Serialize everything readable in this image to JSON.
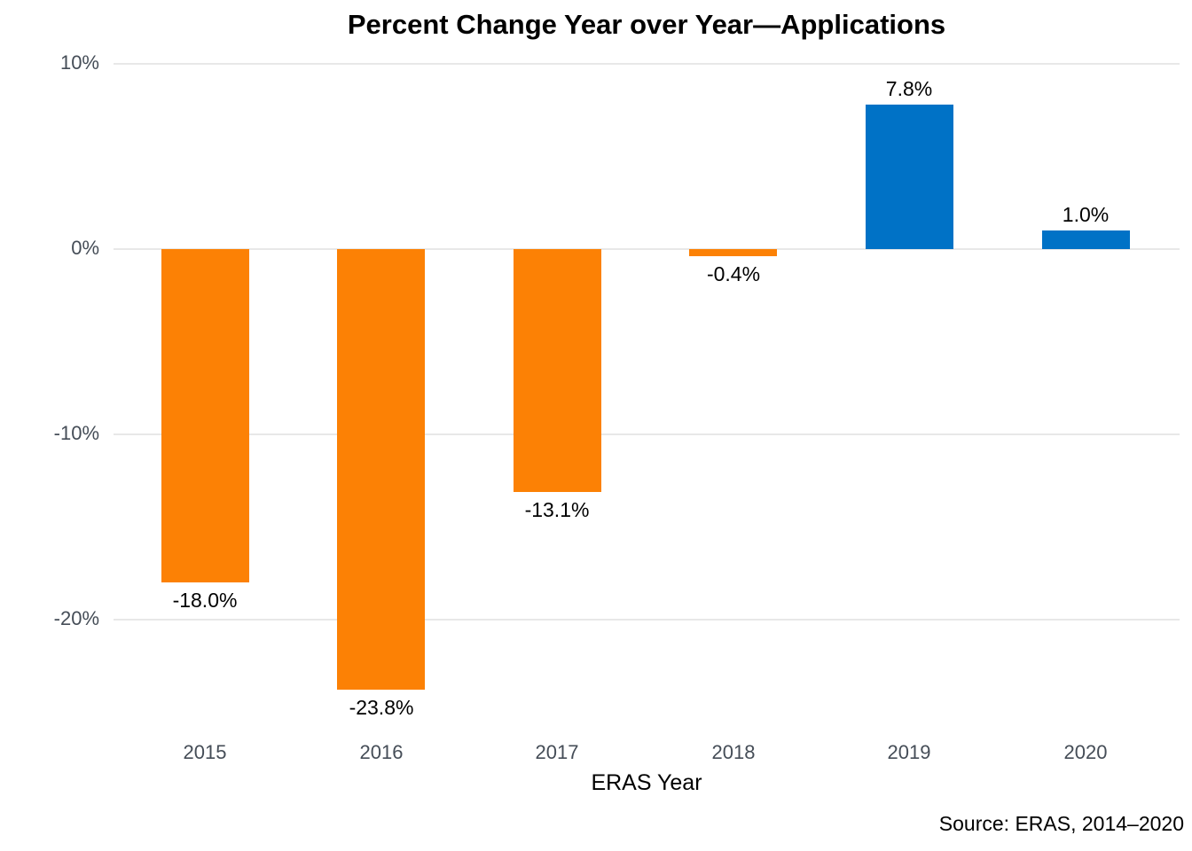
{
  "chart_data": {
    "type": "bar",
    "title": "Percent Change Year over Year—Applications",
    "xlabel": "ERAS Year",
    "ylabel": "",
    "categories": [
      "2015",
      "2016",
      "2017",
      "2018",
      "2019",
      "2020"
    ],
    "values": [
      -18.0,
      -23.8,
      -13.1,
      -0.4,
      7.8,
      1.0
    ],
    "bar_labels": [
      "-18.0%",
      "-23.8%",
      "-13.1%",
      "-0.4%",
      "7.8%",
      "1.0%"
    ],
    "bar_colors": [
      "#fc8105",
      "#fc8105",
      "#fc8105",
      "#fc8105",
      "#0072c6",
      "#0072c6"
    ],
    "yticks": [
      {
        "value": 10,
        "label": "10%"
      },
      {
        "value": 0,
        "label": "0%"
      },
      {
        "value": -10,
        "label": "-10%"
      },
      {
        "value": -20,
        "label": "-20%"
      }
    ],
    "ylim": [
      -26,
      11
    ],
    "grid": "horizontal-only",
    "legend": "none",
    "source_note": "Source: ERAS, 2014–2020",
    "colors": {
      "negative_bar": "#fc8105",
      "positive_bar": "#0072c6",
      "gridline": "#e8e8e8",
      "tick_text": "#454d57",
      "label_text": "#000000",
      "background": "#ffffff"
    }
  }
}
